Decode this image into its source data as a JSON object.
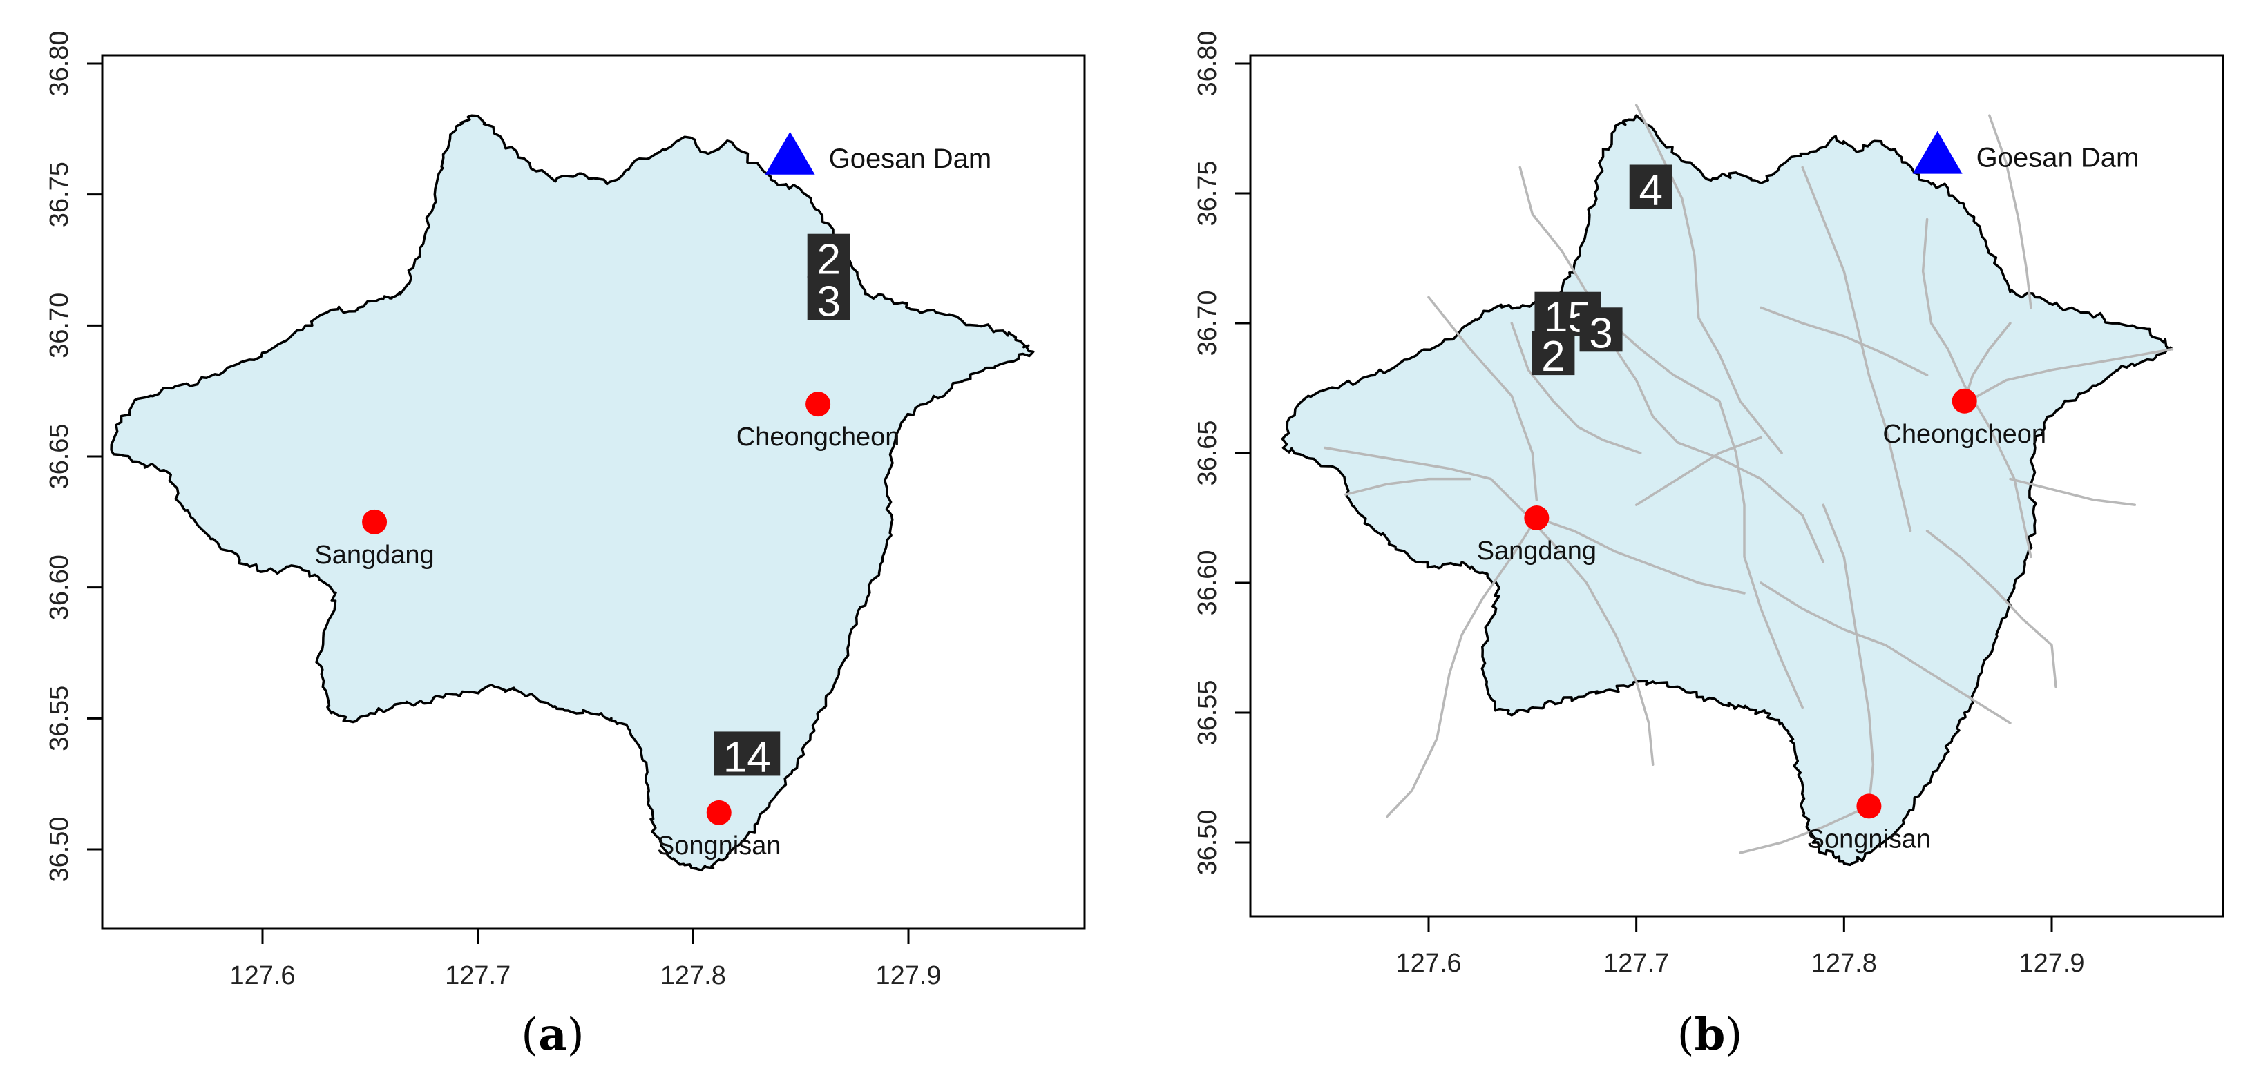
{
  "panels": [
    {
      "id": "a",
      "caption_letter": "a",
      "show_streams": false,
      "x_ticks": [
        "127.6",
        "127.7",
        "127.8",
        "127.9"
      ],
      "y_ticks": [
        "36.50",
        "36.55",
        "36.60",
        "36.65",
        "36.70",
        "36.75",
        "36.80"
      ],
      "dam": {
        "name": "Goesan Dam",
        "lon": 127.845,
        "lat": 36.765,
        "color": "#0000ff"
      },
      "stations": [
        {
          "name": "Cheongcheon",
          "lon": 127.858,
          "lat": 36.67,
          "color": "#ff0000"
        },
        {
          "name": "Sangdang",
          "lon": 127.652,
          "lat": 36.625,
          "color": "#ff0000"
        },
        {
          "name": "Songnisan",
          "lon": 127.812,
          "lat": 36.514,
          "color": "#ff0000"
        }
      ],
      "labels": [
        {
          "text": "2",
          "lon": 127.863,
          "lat": 36.726
        },
        {
          "text": "3",
          "lon": 127.863,
          "lat": 36.71
        },
        {
          "text": "14",
          "lon": 127.825,
          "lat": 36.536
        }
      ]
    },
    {
      "id": "b",
      "caption_letter": "b",
      "show_streams": true,
      "x_ticks": [
        "127.6",
        "127.7",
        "127.8",
        "127.9"
      ],
      "y_ticks": [
        "36.50",
        "36.55",
        "36.60",
        "36.65",
        "36.70",
        "36.75",
        "36.80"
      ],
      "dam": {
        "name": "Goesan Dam",
        "lon": 127.845,
        "lat": 36.765,
        "color": "#0000ff"
      },
      "stations": [
        {
          "name": "Cheongcheon",
          "lon": 127.858,
          "lat": 36.67,
          "color": "#ff0000"
        },
        {
          "name": "Sangdang",
          "lon": 127.652,
          "lat": 36.625,
          "color": "#ff0000"
        },
        {
          "name": "Songnisan",
          "lon": 127.812,
          "lat": 36.514,
          "color": "#ff0000"
        }
      ],
      "labels": [
        {
          "text": "4",
          "lon": 127.707,
          "lat": 36.752
        },
        {
          "text": "15",
          "lon": 127.667,
          "lat": 36.703
        },
        {
          "text": "3",
          "lon": 127.683,
          "lat": 36.697
        },
        {
          "text": "2",
          "lon": 127.66,
          "lat": 36.688
        }
      ]
    }
  ],
  "colors": {
    "watershed_fill": "#d8eef4",
    "stream": "#b8b8b8",
    "label_box": "#2a2a2a"
  }
}
